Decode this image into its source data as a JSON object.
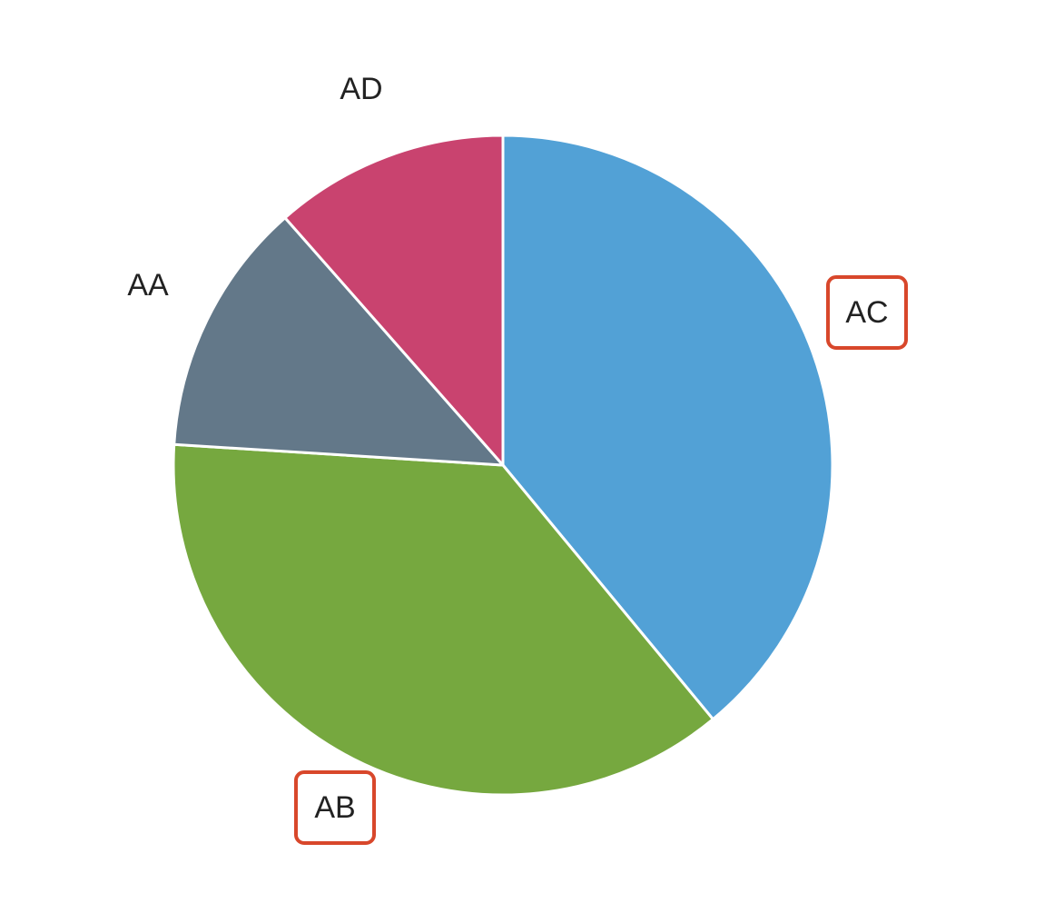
{
  "chart_data": {
    "type": "pie",
    "title": "",
    "categories": [
      "AC",
      "AB",
      "AA",
      "AD"
    ],
    "values": [
      39,
      37,
      12.5,
      11.5
    ],
    "colors": [
      "#52a1d6",
      "#76a83f",
      "#637889",
      "#c9436f"
    ],
    "highlighted": [
      "AC",
      "AB"
    ],
    "highlight_color": "#d8472b",
    "start": "top",
    "direction": "clockwise",
    "slice_border_color": "#ffffff",
    "legend": "none",
    "labels_position": "outside"
  }
}
